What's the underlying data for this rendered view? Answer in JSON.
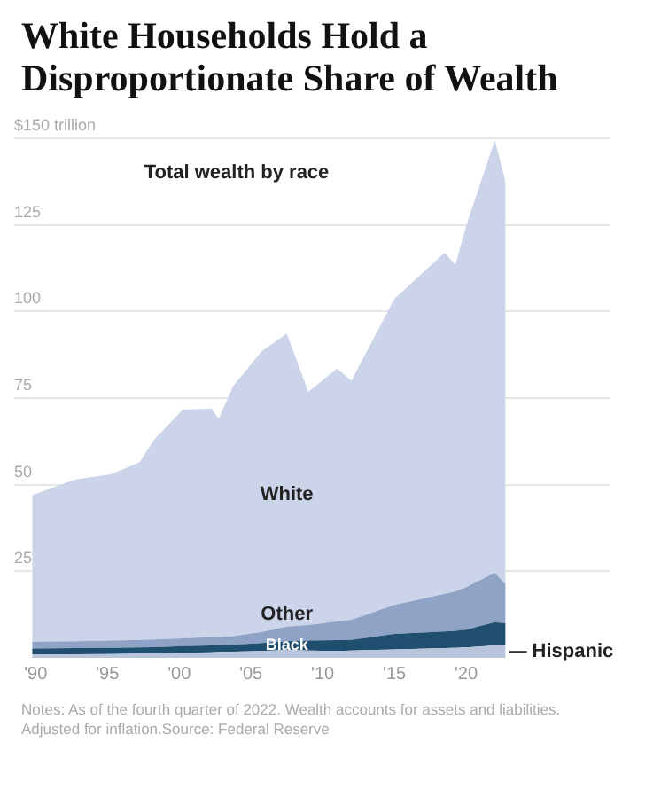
{
  "chart_data": {
    "type": "area",
    "title": "White Households Hold a Disproportionate Share of Wealth",
    "stacked": true,
    "x": [
      1989.75,
      1992.75,
      1995.25,
      1997.25,
      1998.25,
      2000.25,
      2002.25,
      2002.75,
      2003.75,
      2005.75,
      2007.5,
      2009,
      2011,
      2012,
      2015,
      2018.5,
      2019.25,
      2020,
      2022,
      2022.75
    ],
    "series": [
      {
        "name": "Hispanic",
        "color": "#b7c4dc",
        "values": [
          1.0,
          1.0,
          1.1,
          1.2,
          1.3,
          1.5,
          1.6,
          1.7,
          1.8,
          2.0,
          2.3,
          2.1,
          2.0,
          2.1,
          2.4,
          2.8,
          2.9,
          3.0,
          3.6,
          3.5
        ]
      },
      {
        "name": "Black",
        "color": "#1f4e6e",
        "values": [
          1.7,
          1.8,
          1.8,
          1.8,
          1.8,
          1.9,
          2.0,
          1.9,
          2.0,
          2.3,
          2.5,
          2.9,
          3.1,
          3.1,
          4.5,
          4.8,
          4.9,
          5.1,
          6.7,
          6.5
        ]
      },
      {
        "name": "Other",
        "color": "#8fa3c7",
        "values": [
          2.0,
          2.0,
          2.1,
          2.2,
          2.2,
          2.2,
          2.4,
          2.4,
          2.5,
          3.2,
          4.2,
          4.5,
          5.4,
          5.8,
          8.4,
          10.9,
          11.4,
          12.3,
          14.3,
          11.2
        ]
      },
      {
        "name": "White",
        "color": "#cbd4e8",
        "values": [
          42.3,
          46.7,
          48,
          51.3,
          57.7,
          66.1,
          66,
          63,
          72.1,
          81,
          84.6,
          67.3,
          73,
          69,
          88.4,
          98.5,
          94.3,
          104.3,
          124.9,
          116.2
        ]
      }
    ],
    "xlim": [
      1988.5,
      2030
    ],
    "xticks": [
      {
        "value": 1990,
        "label": "'90"
      },
      {
        "value": 1995,
        "label": "'95"
      },
      {
        "value": 2000,
        "label": "'00"
      },
      {
        "value": 2005,
        "label": "'05"
      },
      {
        "value": 2010,
        "label": "'10"
      },
      {
        "value": 2015,
        "label": "'15"
      },
      {
        "value": 2020,
        "label": "'20"
      }
    ],
    "ylim": [
      0,
      150
    ],
    "yticks": [
      25,
      50,
      75,
      100,
      125,
      {
        "value": 150,
        "label": "$150 trillion"
      }
    ],
    "grid": "y",
    "legend": false,
    "annotations": [
      "Total wealth by race",
      "Notes: As of the fourth quarter of 2022. Wealth accounts for assets and liabilities. Adjusted for inflation.Source: Federal Reserve"
    ]
  }
}
